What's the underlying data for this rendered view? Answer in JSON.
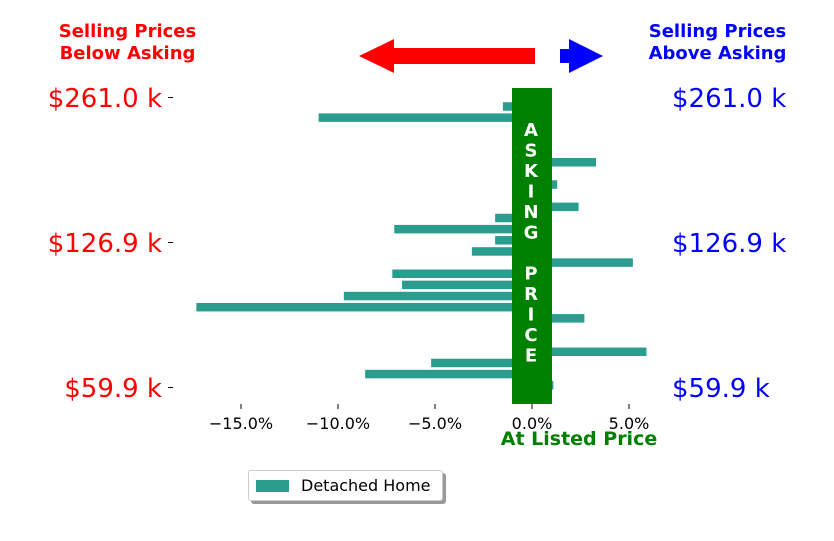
{
  "headers": {
    "below_line1": "Selling Prices",
    "below_line2": "Below Asking",
    "above_line1": "Selling Prices",
    "above_line2": "Above Asking"
  },
  "colors": {
    "below": "#ff0000",
    "above": "#0000ff",
    "bar": "#2a9d8f",
    "asking_band": "#008000"
  },
  "asking_band_text": "ASKING PRICE",
  "listed_price_label": "At Listed Price",
  "legend": {
    "label": "Detached Home"
  },
  "chart_data": {
    "type": "bar",
    "orientation": "horizontal",
    "title": "",
    "xlabel": "At Listed Price",
    "xlim": [
      -17.5,
      8
    ],
    "x_ticks": [
      -15,
      -10,
      -5,
      0,
      5
    ],
    "x_tick_labels": [
      "−15.0%",
      "−10.0%",
      "−5.0%",
      "0.0%",
      "5.0%"
    ],
    "y_tick_labels": [
      "$261.0 k",
      "$126.9 k",
      "$59.9 k"
    ],
    "y_tick_label_values": [
      261.0,
      126.9,
      59.9
    ],
    "series": [
      {
        "name": "Detached Home",
        "values": [
          -1.5,
          -11.0,
          0.5,
          0.4,
          0.5,
          3.3,
          0.6,
          1.3,
          0.6,
          2.4,
          -1.9,
          -7.1,
          -1.9,
          -3.1,
          5.2,
          -7.2,
          -6.7,
          -9.7,
          -17.3,
          2.7,
          1.0,
          -0.7,
          5.9,
          -5.2,
          -8.6,
          1.1
        ]
      }
    ],
    "grid": false,
    "legend_position": "bottom-left"
  }
}
